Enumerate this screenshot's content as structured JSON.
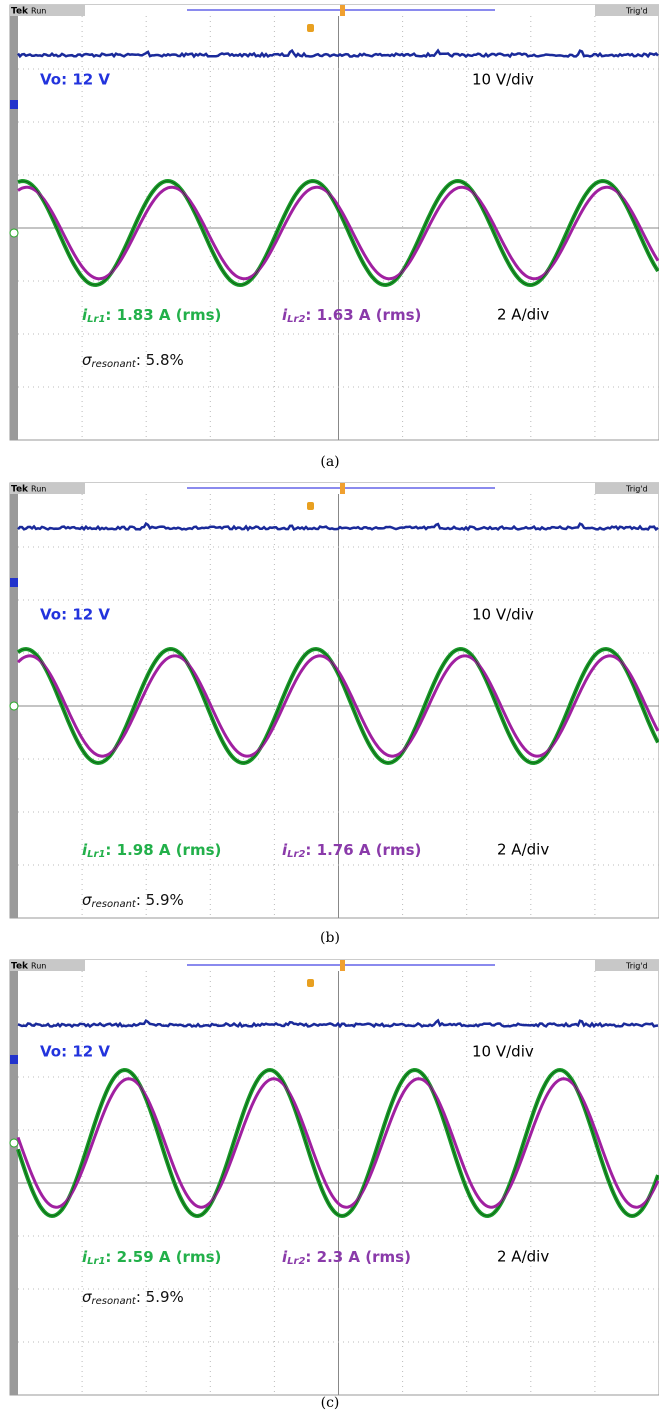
{
  "panels": [
    {
      "top_left": "Tek",
      "status": "Run",
      "trigger": "Trig'd",
      "vo_label": "Vo: 12 V",
      "vo_scale": "10 V/div",
      "i1": {
        "symbol": "i",
        "subscript": "Lr1",
        "text": ": 1.83 A (rms)"
      },
      "i2": {
        "symbol": "i",
        "subscript": "Lr2",
        "text": ": 1.63 A (rms)"
      },
      "i_scale": "2 A/div",
      "sigma": {
        "symbol": "σ",
        "subscript": "resonant",
        "text": ": 5.8%"
      },
      "caption": "(a)"
    },
    {
      "top_left": "Tek",
      "status": "Run",
      "trigger": "Trig'd",
      "vo_label": "Vo: 12 V",
      "vo_scale": "10 V/div",
      "i1": {
        "symbol": "i",
        "subscript": "Lr1",
        "text": ": 1.98 A (rms)"
      },
      "i2": {
        "symbol": "i",
        "subscript": "Lr2",
        "text": ": 1.76 A (rms)"
      },
      "i_scale": "2 A/div",
      "sigma": {
        "symbol": "σ",
        "subscript": "resonant",
        "text": ": 5.9%"
      },
      "caption": "(b)"
    },
    {
      "top_left": "Tek",
      "status": "Run",
      "trigger": "Trig'd",
      "vo_label": "Vo: 12 V",
      "vo_scale": "10 V/div",
      "i1": {
        "symbol": "i",
        "subscript": "Lr1",
        "text": ": 2.59 A (rms)"
      },
      "i2": {
        "symbol": "i",
        "subscript": "Lr2",
        "text": ": 2.3 A (rms)"
      },
      "i_scale": "2 A/div",
      "sigma": {
        "symbol": "σ",
        "subscript": "resonant",
        "text": ": 5.9%"
      },
      "caption": "(c)"
    }
  ]
}
